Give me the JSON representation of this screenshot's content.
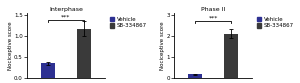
{
  "chart_data": [
    {
      "type": "bar",
      "title": "Interphase",
      "categories": [
        "Vehicle",
        "SB-334867"
      ],
      "values": [
        0.35,
        1.18
      ],
      "errors": [
        0.03,
        0.18
      ],
      "colors": [
        "#2e3192",
        "#3a3a3a"
      ],
      "ylabel": "Nociceptive score",
      "ylim": [
        0,
        1.55
      ],
      "yticks": [
        {
          "value": 0.0,
          "label": "0.0"
        },
        0.5,
        {
          "value": 1.0,
          "label": "1.0"
        },
        1.5
      ],
      "annotations": [
        {
          "text": "***",
          "y": 1.38
        }
      ],
      "tick_labels": "y",
      "legend": "upper left"
    },
    {
      "type": "bar",
      "title": "Phase II",
      "categories": [
        "Vehicle",
        "SB-334867"
      ],
      "values": [
        0.17,
        2.12
      ],
      "errors": [
        0.03,
        0.22
      ],
      "colors": [
        "#2e3192",
        "#3a3a3a"
      ],
      "ylabel": "Nociceptive score",
      "ylim": [
        0,
        3.1
      ],
      "yticks": [
        0,
        1,
        2,
        3
      ],
      "annotations": [
        {
          "text": "***",
          "y": 2.72
        }
      ],
      "tick_labels": "y",
      "legend": "upper left"
    }
  ]
}
